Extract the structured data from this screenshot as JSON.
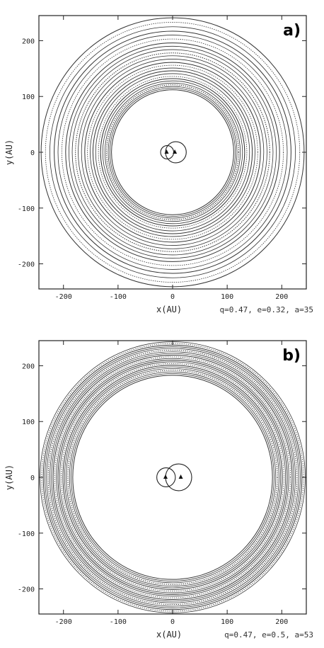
{
  "chart_data": [
    {
      "type": "scatter",
      "panel_label": "a)",
      "xlabel": "x(AU)",
      "ylabel": "y(AU)",
      "params_text": "q=0.47, e=0.32, a=35",
      "xlim": [
        -245,
        245
      ],
      "ylim": [
        -245,
        245
      ],
      "xticks": [
        -200,
        -100,
        0,
        100,
        200
      ],
      "yticks": [
        -200,
        -100,
        0,
        100,
        200
      ],
      "series": [
        {
          "role": "binary_orbits",
          "orbits": [
            {
              "center": [
                -10,
                0
              ],
              "radius": 12
            },
            {
              "center": [
                6,
                0
              ],
              "radius": 19
            }
          ],
          "stars": [
            [
              -11,
              0
            ],
            [
              4,
              0
            ]
          ]
        },
        {
          "role": "disc_rings",
          "radii": [
            112,
            115,
            118,
            121,
            124,
            128,
            132,
            136,
            141,
            146,
            151,
            156,
            161,
            167,
            173,
            178,
            184,
            190,
            196,
            203,
            210,
            217,
            225,
            233,
            241
          ]
        }
      ],
      "line_color": "#333333"
    },
    {
      "type": "scatter",
      "panel_label": "b)",
      "xlabel": "x(AU)",
      "ylabel": "y(AU)",
      "params_text": "q=0.47, e=0.5, a=53",
      "xlim": [
        -245,
        245
      ],
      "ylim": [
        -245,
        245
      ],
      "xticks": [
        -200,
        -100,
        0,
        100,
        200
      ],
      "yticks": [
        -200,
        -100,
        0,
        100,
        200
      ],
      "series": [
        {
          "role": "binary_orbits",
          "orbits": [
            {
              "center": [
                -12,
                0
              ],
              "radius": 17
            },
            {
              "center": [
                11,
                0
              ],
              "radius": 24
            }
          ],
          "stars": [
            [
              -13,
              0
            ],
            [
              15,
              0
            ]
          ]
        },
        {
          "role": "disc_rings",
          "radii": [
            183,
            186,
            189,
            192,
            195,
            198,
            201,
            204,
            207,
            210,
            213,
            216,
            219,
            222,
            225,
            228,
            231,
            234,
            237,
            240,
            243
          ]
        }
      ],
      "line_color": "#333333"
    }
  ]
}
